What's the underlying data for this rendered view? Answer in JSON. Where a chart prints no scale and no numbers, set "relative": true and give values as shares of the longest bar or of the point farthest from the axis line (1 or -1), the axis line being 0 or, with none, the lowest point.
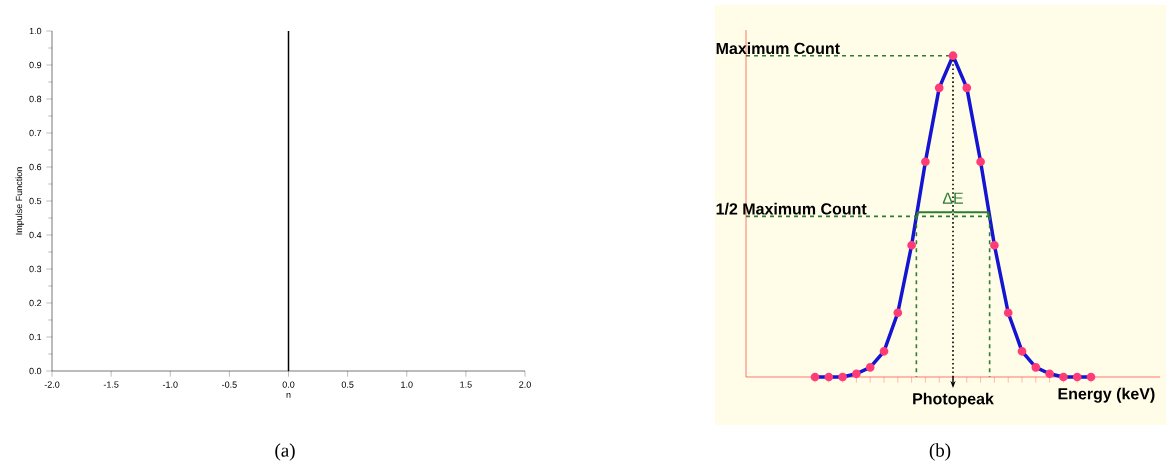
{
  "chart_data": [
    {
      "type": "bar",
      "xlabel": "n",
      "ylabel": "Impulse Function",
      "x": [
        0
      ],
      "values": [
        1
      ],
      "color": "#000000",
      "xlim": [
        -2,
        2
      ],
      "xticks": [
        {
          "value": -2,
          "label": "-2.0"
        },
        {
          "value": -1.5,
          "label": "-1.5"
        },
        {
          "value": -1,
          "label": "-1.0"
        },
        {
          "value": -0.5,
          "label": "-0.5"
        },
        {
          "value": 0,
          "label": "0.0"
        },
        {
          "value": 0.5,
          "label": "0.5"
        },
        {
          "value": 1,
          "label": "1.0"
        },
        {
          "value": 1.5,
          "label": "1.5"
        },
        {
          "value": 2,
          "label": "2.0"
        }
      ],
      "ylim": [
        0,
        1
      ],
      "yticks": [
        {
          "value": 0,
          "label": "0.0"
        },
        0.1,
        0.2,
        0.3,
        0.4,
        0.5,
        0.6,
        0.7,
        0.8,
        0.9,
        {
          "value": 1,
          "label": "1.0"
        }
      ],
      "annotations": [
        "(a)"
      ]
    },
    {
      "type": "line",
      "xlabel": "Energy (keV)",
      "relative": true,
      "marker": "circle",
      "categories": [
        null,
        null,
        null,
        null,
        null,
        null,
        null,
        null,
        null,
        null,
        null,
        null,
        null,
        null,
        null,
        null,
        null,
        null,
        null,
        null,
        null
      ],
      "series": [
        {
          "type": "line",
          "color": "#1414d2",
          "values": [
            0,
            0,
            0,
            0.01,
            0.03,
            0.08,
            0.2,
            0.41,
            0.67,
            0.9,
            1,
            0.9,
            0.67,
            0.41,
            0.2,
            0.08,
            0.03,
            0.01,
            0,
            0,
            0
          ]
        }
      ],
      "ref_lines": [
        {
          "axis": "y",
          "value": 1,
          "label": "Maximum Count",
          "color": "#2e7d32",
          "line_style": "dashed"
        },
        {
          "axis": "y",
          "value": 0.5,
          "label": "1/2 Maximum Count",
          "color": "#2e7d32",
          "line_style": "dashed"
        }
      ],
      "annotations": [
        "(b)",
        "ΔE",
        "Photopeak"
      ]
    }
  ]
}
